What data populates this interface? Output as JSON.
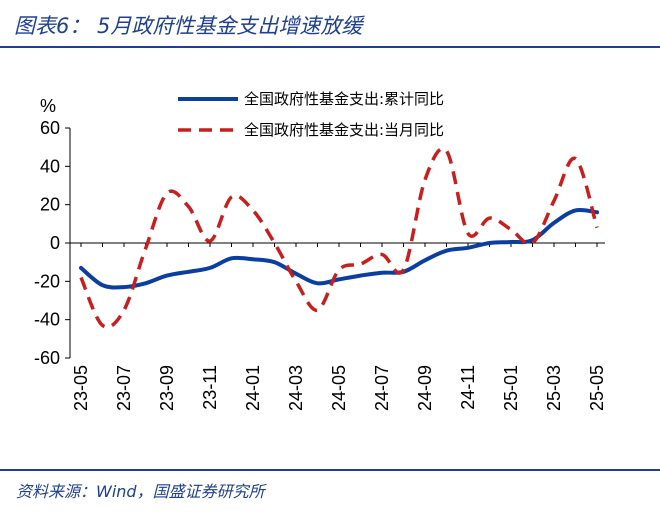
{
  "title": "图表6： 5月政府性基金支出增速放缓",
  "source": "资料来源：Wind，国盛证券研究所",
  "chart_data": {
    "type": "line",
    "ylabel": "%",
    "ylim": [
      -60,
      60
    ],
    "yticks": [
      60,
      40,
      20,
      0,
      -20,
      -40,
      -60
    ],
    "x": [
      "23-05",
      "23-06",
      "23-07",
      "23-08",
      "23-09",
      "23-10",
      "23-11",
      "23-12",
      "24-01",
      "24-02",
      "24-03",
      "24-04",
      "24-05",
      "24-06",
      "24-07",
      "24-08",
      "24-09",
      "24-10",
      "24-11",
      "24-12",
      "25-01",
      "25-02",
      "25-03",
      "25-04",
      "25-05"
    ],
    "xtick_labels": [
      "23-05",
      "23-07",
      "23-09",
      "23-11",
      "24-01",
      "24-03",
      "24-05",
      "24-07",
      "24-09",
      "24-11",
      "25-01",
      "25-03",
      "25-05"
    ],
    "legend_position": "top-right",
    "series": [
      {
        "name": "全国政府性基金支出:累计同比",
        "color": "#0a3ea0",
        "style": "solid",
        "values": [
          -13,
          -22,
          -23,
          -21,
          -17,
          -15,
          -13,
          -8,
          -8.5,
          -10,
          -16,
          -21,
          -19,
          -17,
          -15.5,
          -15,
          -9,
          -4,
          -2.5,
          0,
          0.5,
          1.5,
          10.5,
          17,
          16
        ]
      },
      {
        "name": "全国政府性基金支出:当月同比",
        "color": "#c81e1e",
        "style": "dashed",
        "values": [
          -18,
          -43,
          -35,
          -3,
          26,
          19,
          1,
          24,
          17,
          0,
          -20,
          -35,
          -14,
          -11,
          -6,
          -14,
          33,
          48,
          5,
          13,
          7,
          0,
          22,
          44,
          8
        ]
      }
    ]
  }
}
